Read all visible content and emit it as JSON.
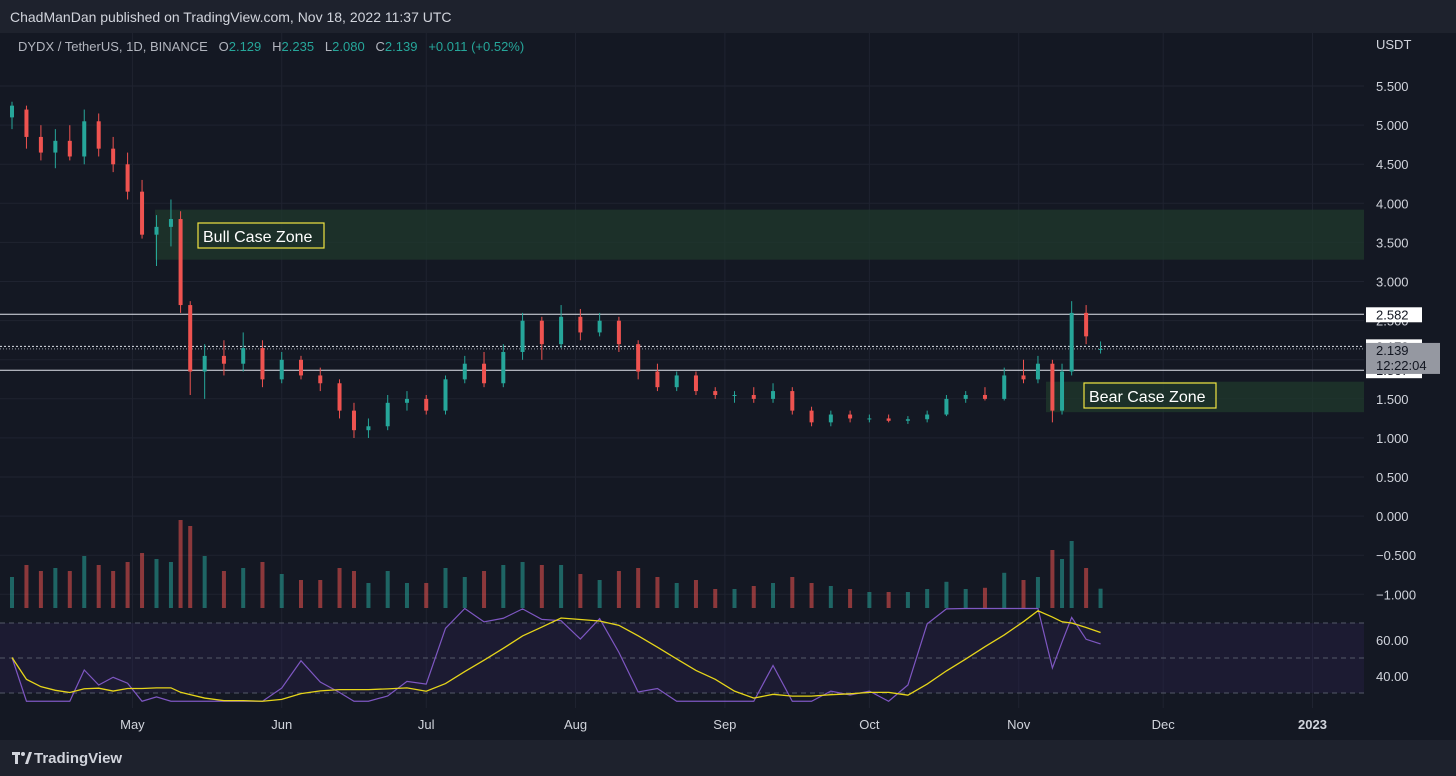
{
  "header": {
    "published": "ChadManDan published on TradingView.com, Nov 18, 2022 11:37 UTC"
  },
  "legend": {
    "symbol": "DYDX / TetherUS, 1D, BINANCE",
    "o_label": "O",
    "o_value": "2.129",
    "h_label": "H",
    "h_value": "2.235",
    "l_label": "L",
    "l_value": "2.080",
    "c_label": "C",
    "c_value": "2.139",
    "change": "+0.011 (+0.52%)"
  },
  "footer": {
    "brand": "TradingView",
    "logo_icon": "tradingview-logo-icon"
  },
  "chart_data": {
    "type": "candlestick",
    "price_axis_unit": "USDT",
    "price_ticks": [
      "5.500",
      "5.000",
      "4.500",
      "4.000",
      "3.500",
      "3.000",
      "2.500",
      "2.000",
      "1.500",
      "1.000",
      "0.500",
      "0.000",
      "−0.500",
      "−1.000"
    ],
    "rsi_ticks": [
      "60.00",
      "40.00"
    ],
    "x_ticks": [
      "May",
      "Jun",
      "Jul",
      "Aug",
      "Sep",
      "Oct",
      "Nov",
      "Dec",
      "2023"
    ],
    "last_price": "2.139",
    "countdown": "12:22:04",
    "horizontal_levels": [
      "2.582",
      "2.172",
      "1.867"
    ],
    "zones": [
      {
        "label": "Bull Case Zone",
        "low": 3.28,
        "high": 3.92,
        "color": "#1f3a2c"
      },
      {
        "label": "Bear Case Zone",
        "low": 1.33,
        "high": 1.72,
        "color": "#1f3a2c"
      }
    ],
    "colors": {
      "up": "#26a69a",
      "down": "#ef5350",
      "rsi": "#7e57c2",
      "rsi_ma": "#e6d51a"
    },
    "candles": [
      {
        "x": "2022-04-06",
        "o": 5.1,
        "h": 5.3,
        "l": 4.95,
        "c": 5.25
      },
      {
        "x": "2022-04-09",
        "o": 5.2,
        "h": 5.25,
        "l": 4.7,
        "c": 4.85
      },
      {
        "x": "2022-04-12",
        "o": 4.85,
        "h": 5.0,
        "l": 4.55,
        "c": 4.65
      },
      {
        "x": "2022-04-15",
        "o": 4.65,
        "h": 4.95,
        "l": 4.45,
        "c": 4.8
      },
      {
        "x": "2022-04-18",
        "o": 4.8,
        "h": 5.0,
        "l": 4.55,
        "c": 4.6
      },
      {
        "x": "2022-04-21",
        "o": 4.6,
        "h": 5.2,
        "l": 4.5,
        "c": 5.05
      },
      {
        "x": "2022-04-24",
        "o": 5.05,
        "h": 5.15,
        "l": 4.6,
        "c": 4.7
      },
      {
        "x": "2022-04-27",
        "o": 4.7,
        "h": 4.85,
        "l": 4.4,
        "c": 4.5
      },
      {
        "x": "2022-04-30",
        "o": 4.5,
        "h": 4.65,
        "l": 4.05,
        "c": 4.15
      },
      {
        "x": "2022-05-03",
        "o": 4.15,
        "h": 4.3,
        "l": 3.55,
        "c": 3.6
      },
      {
        "x": "2022-05-06",
        "o": 3.6,
        "h": 3.85,
        "l": 3.2,
        "c": 3.7
      },
      {
        "x": "2022-05-09",
        "o": 3.7,
        "h": 4.05,
        "l": 3.45,
        "c": 3.8
      },
      {
        "x": "2022-05-11",
        "o": 3.8,
        "h": 3.9,
        "l": 2.6,
        "c": 2.7
      },
      {
        "x": "2022-05-13",
        "o": 2.7,
        "h": 2.75,
        "l": 1.55,
        "c": 1.85
      },
      {
        "x": "2022-05-16",
        "o": 1.85,
        "h": 2.2,
        "l": 1.5,
        "c": 2.05
      },
      {
        "x": "2022-05-20",
        "o": 2.05,
        "h": 2.25,
        "l": 1.8,
        "c": 1.95
      },
      {
        "x": "2022-05-24",
        "o": 1.95,
        "h": 2.35,
        "l": 1.85,
        "c": 2.15
      },
      {
        "x": "2022-05-28",
        "o": 2.15,
        "h": 2.25,
        "l": 1.65,
        "c": 1.75
      },
      {
        "x": "2022-06-01",
        "o": 1.75,
        "h": 2.1,
        "l": 1.7,
        "c": 2.0
      },
      {
        "x": "2022-06-05",
        "o": 2.0,
        "h": 2.05,
        "l": 1.75,
        "c": 1.8
      },
      {
        "x": "2022-06-09",
        "o": 1.8,
        "h": 1.9,
        "l": 1.6,
        "c": 1.7
      },
      {
        "x": "2022-06-13",
        "o": 1.7,
        "h": 1.75,
        "l": 1.25,
        "c": 1.35
      },
      {
        "x": "2022-06-16",
        "o": 1.35,
        "h": 1.45,
        "l": 1.0,
        "c": 1.1
      },
      {
        "x": "2022-06-19",
        "o": 1.1,
        "h": 1.25,
        "l": 1.0,
        "c": 1.15
      },
      {
        "x": "2022-06-23",
        "o": 1.15,
        "h": 1.55,
        "l": 1.1,
        "c": 1.45
      },
      {
        "x": "2022-06-27",
        "o": 1.45,
        "h": 1.6,
        "l": 1.35,
        "c": 1.5
      },
      {
        "x": "2022-07-01",
        "o": 1.5,
        "h": 1.55,
        "l": 1.3,
        "c": 1.35
      },
      {
        "x": "2022-07-05",
        "o": 1.35,
        "h": 1.8,
        "l": 1.3,
        "c": 1.75
      },
      {
        "x": "2022-07-09",
        "o": 1.75,
        "h": 2.05,
        "l": 1.7,
        "c": 1.95
      },
      {
        "x": "2022-07-13",
        "o": 1.95,
        "h": 2.1,
        "l": 1.65,
        "c": 1.7
      },
      {
        "x": "2022-07-17",
        "o": 1.7,
        "h": 2.2,
        "l": 1.65,
        "c": 2.1
      },
      {
        "x": "2022-07-21",
        "o": 2.1,
        "h": 2.6,
        "l": 2.0,
        "c": 2.5
      },
      {
        "x": "2022-07-25",
        "o": 2.5,
        "h": 2.55,
        "l": 2.0,
        "c": 2.2
      },
      {
        "x": "2022-07-29",
        "o": 2.2,
        "h": 2.7,
        "l": 2.15,
        "c": 2.55
      },
      {
        "x": "2022-08-02",
        "o": 2.55,
        "h": 2.65,
        "l": 2.25,
        "c": 2.35
      },
      {
        "x": "2022-08-06",
        "o": 2.35,
        "h": 2.6,
        "l": 2.3,
        "c": 2.5
      },
      {
        "x": "2022-08-10",
        "o": 2.5,
        "h": 2.55,
        "l": 2.1,
        "c": 2.2
      },
      {
        "x": "2022-08-14",
        "o": 2.2,
        "h": 2.25,
        "l": 1.75,
        "c": 1.85
      },
      {
        "x": "2022-08-18",
        "o": 1.85,
        "h": 1.95,
        "l": 1.6,
        "c": 1.65
      },
      {
        "x": "2022-08-22",
        "o": 1.65,
        "h": 1.85,
        "l": 1.6,
        "c": 1.8
      },
      {
        "x": "2022-08-26",
        "o": 1.8,
        "h": 1.85,
        "l": 1.55,
        "c": 1.6
      },
      {
        "x": "2022-08-30",
        "o": 1.6,
        "h": 1.65,
        "l": 1.5,
        "c": 1.55
      },
      {
        "x": "2022-09-03",
        "o": 1.55,
        "h": 1.6,
        "l": 1.45,
        "c": 1.55
      },
      {
        "x": "2022-09-07",
        "o": 1.55,
        "h": 1.65,
        "l": 1.45,
        "c": 1.5
      },
      {
        "x": "2022-09-11",
        "o": 1.5,
        "h": 1.7,
        "l": 1.45,
        "c": 1.6
      },
      {
        "x": "2022-09-15",
        "o": 1.6,
        "h": 1.65,
        "l": 1.3,
        "c": 1.35
      },
      {
        "x": "2022-09-19",
        "o": 1.35,
        "h": 1.4,
        "l": 1.15,
        "c": 1.2
      },
      {
        "x": "2022-09-23",
        "o": 1.2,
        "h": 1.35,
        "l": 1.15,
        "c": 1.3
      },
      {
        "x": "2022-09-27",
        "o": 1.3,
        "h": 1.35,
        "l": 1.2,
        "c": 1.25
      },
      {
        "x": "2022-10-01",
        "o": 1.25,
        "h": 1.3,
        "l": 1.2,
        "c": 1.25
      },
      {
        "x": "2022-10-05",
        "o": 1.25,
        "h": 1.3,
        "l": 1.2,
        "c": 1.22
      },
      {
        "x": "2022-10-09",
        "o": 1.22,
        "h": 1.28,
        "l": 1.18,
        "c": 1.24
      },
      {
        "x": "2022-10-13",
        "o": 1.24,
        "h": 1.35,
        "l": 1.2,
        "c": 1.3
      },
      {
        "x": "2022-10-17",
        "o": 1.3,
        "h": 1.55,
        "l": 1.28,
        "c": 1.5
      },
      {
        "x": "2022-10-21",
        "o": 1.5,
        "h": 1.6,
        "l": 1.45,
        "c": 1.55
      },
      {
        "x": "2022-10-25",
        "o": 1.55,
        "h": 1.65,
        "l": 1.48,
        "c": 1.5
      },
      {
        "x": "2022-10-29",
        "o": 1.5,
        "h": 1.9,
        "l": 1.48,
        "c": 1.8
      },
      {
        "x": "2022-11-02",
        "o": 1.8,
        "h": 2.0,
        "l": 1.7,
        "c": 1.75
      },
      {
        "x": "2022-11-05",
        "o": 1.75,
        "h": 2.05,
        "l": 1.7,
        "c": 1.95
      },
      {
        "x": "2022-11-08",
        "o": 1.95,
        "h": 2.0,
        "l": 1.2,
        "c": 1.35
      },
      {
        "x": "2022-11-10",
        "o": 1.35,
        "h": 1.95,
        "l": 1.3,
        "c": 1.85
      },
      {
        "x": "2022-11-12",
        "o": 1.85,
        "h": 2.75,
        "l": 1.8,
        "c": 2.6
      },
      {
        "x": "2022-11-15",
        "o": 2.6,
        "h": 2.7,
        "l": 2.2,
        "c": 2.3
      },
      {
        "x": "2022-11-18",
        "o": 2.129,
        "h": 2.235,
        "l": 2.08,
        "c": 2.139
      }
    ]
  }
}
